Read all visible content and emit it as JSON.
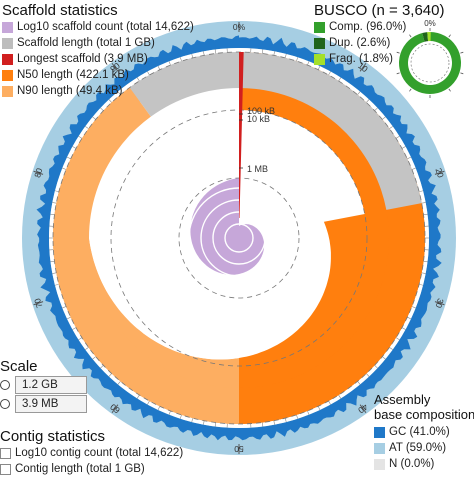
{
  "chart_data": [
    {
      "type": "snail",
      "scaffold_statistics": {
        "title": "Scaffold statistics",
        "legend": [
          {
            "key": "count",
            "label": "Log10 scaffold count (total 14,622)",
            "color": "#b8b8b8"
          },
          {
            "key": "length",
            "label": "Scaffold length (total 1 GB)",
            "color": "#c4c4c4"
          },
          {
            "key": "longest",
            "label": "Longest scaffold (3.9 MB)",
            "color": "#d11f1f"
          },
          {
            "key": "n50",
            "label": "N50 length (422.1 kB)",
            "color": "#ff7f0e"
          },
          {
            "key": "n90",
            "label": "N90 length (49.4 kB)",
            "color": "#fdae61"
          }
        ]
      },
      "percent_ticks": [
        "0%",
        "10",
        "20",
        "30",
        "40",
        "50",
        "60",
        "70",
        "80",
        "90"
      ],
      "radial_labels": [
        "10 kB",
        "100 kB",
        "1 MB"
      ],
      "n50_percent": 50,
      "n90_percent": 90,
      "gc_percent": 41.0,
      "at_percent": 59.0,
      "n_percent": 0.0,
      "scale": {
        "title": "Scale",
        "values": [
          "1.2 GB",
          "3.9 MB"
        ]
      },
      "contig_statistics": {
        "title": "Contig statistics",
        "legend": [
          {
            "label": "Log10 contig count (total 14,622)"
          },
          {
            "label": "Contig length (total 1 GB)"
          }
        ]
      },
      "base_composition": {
        "title_line1": "Assembly",
        "title_line2": "base composition",
        "legend": [
          {
            "label": "GC (41.0%)",
            "color": "#1f78c8"
          },
          {
            "label": "AT (59.0%)",
            "color": "#a6cee3"
          },
          {
            "label": "N (0.0%)",
            "color": "#e4e4e4"
          }
        ]
      }
    },
    {
      "type": "pie",
      "title": "BUSCO (n = 3,640)",
      "tick_label": "0%",
      "slices": [
        {
          "label": "Comp. (96.0%)",
          "value": 96.0,
          "color": "#33a02c"
        },
        {
          "label": "Dup. (2.6%)",
          "value": 2.6,
          "color": "#20641c"
        },
        {
          "label": "Frag. (1.8%)",
          "value": 1.8,
          "color": "#a3e02b"
        }
      ]
    }
  ],
  "colors": {
    "gc": "#1f78c8",
    "at": "#a6cee3",
    "n50": "#ff7f0e",
    "n90": "#fdae61",
    "length": "#c4c4c4",
    "longest": "#d11f1f",
    "count": "#c6a7d9",
    "busco_complete": "#33a02c"
  }
}
